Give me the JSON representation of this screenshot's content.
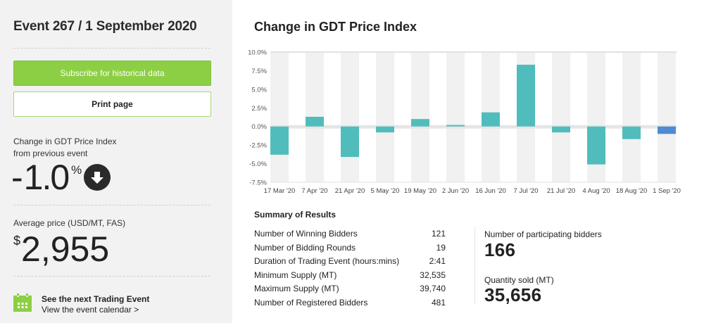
{
  "left_panel": {
    "event_title": "Event 267 / 1 September 2020",
    "subscribe_button": "Subscribe for historical data",
    "print_button": "Print page",
    "change_label_line1": "Change in GDT Price Index",
    "change_label_line2": "from previous event",
    "change_sign": "-",
    "change_value": "1.0",
    "change_unit": "%",
    "change_direction_icon": "arrow-down-circle-icon",
    "avg_price_label": "Average price (USD/MT, FAS)",
    "avg_price_currency": "$",
    "avg_price_value": "2,955",
    "next_event_title": "See the next Trading Event",
    "next_event_link": "View the event calendar >",
    "calendar_icon": "calendar-icon"
  },
  "colors": {
    "green": "#8dcf44",
    "teal_bar": "#51bcbc",
    "current_bar": "#4f8ad2",
    "column_band": "#f1f1f1"
  },
  "chart_data": {
    "type": "bar",
    "title": "Change in GDT Price Index",
    "xlabel": "",
    "ylabel": "",
    "ylim": [
      -7.5,
      10.0
    ],
    "yticks": [
      "10.0%",
      "7.5%",
      "5.0%",
      "2.5%",
      "0.0%",
      "-2.5%",
      "-5.0%",
      "-7.5%"
    ],
    "ytick_values": [
      10.0,
      7.5,
      5.0,
      2.5,
      0.0,
      -2.5,
      -5.0,
      -7.5
    ],
    "categories": [
      "17 Mar '20",
      "7 Apr '20",
      "21 Apr '20",
      "5 May '20",
      "19 May '20",
      "2 Jun '20",
      "16 Jun '20",
      "7 Jul '20",
      "21 Jul '20",
      "4 Aug '20",
      "18 Aug '20",
      "1 Sep '20"
    ],
    "values": [
      -3.8,
      1.3,
      -4.1,
      -0.8,
      1.0,
      0.2,
      1.9,
      8.3,
      -0.8,
      -5.1,
      -1.7,
      -1.0
    ],
    "highlight_index": 11,
    "grid": false,
    "legend": "none"
  },
  "summary": {
    "title": "Summary of Results",
    "rows": [
      {
        "label": "Number of Winning Bidders",
        "value": "121"
      },
      {
        "label": "Number of Bidding Rounds",
        "value": "19"
      },
      {
        "label": "Duration of Trading Event (hours:mins)",
        "value": "2:41"
      },
      {
        "label": "Minimum Supply (MT)",
        "value": "32,535"
      },
      {
        "label": "Maximum Supply (MT)",
        "value": "39,740"
      },
      {
        "label": "Number of Registered Bidders",
        "value": "481"
      }
    ],
    "participating_label": "Number of participating bidders",
    "participating_value": "166",
    "quantity_label": "Quantity sold (MT)",
    "quantity_value": "35,656"
  }
}
